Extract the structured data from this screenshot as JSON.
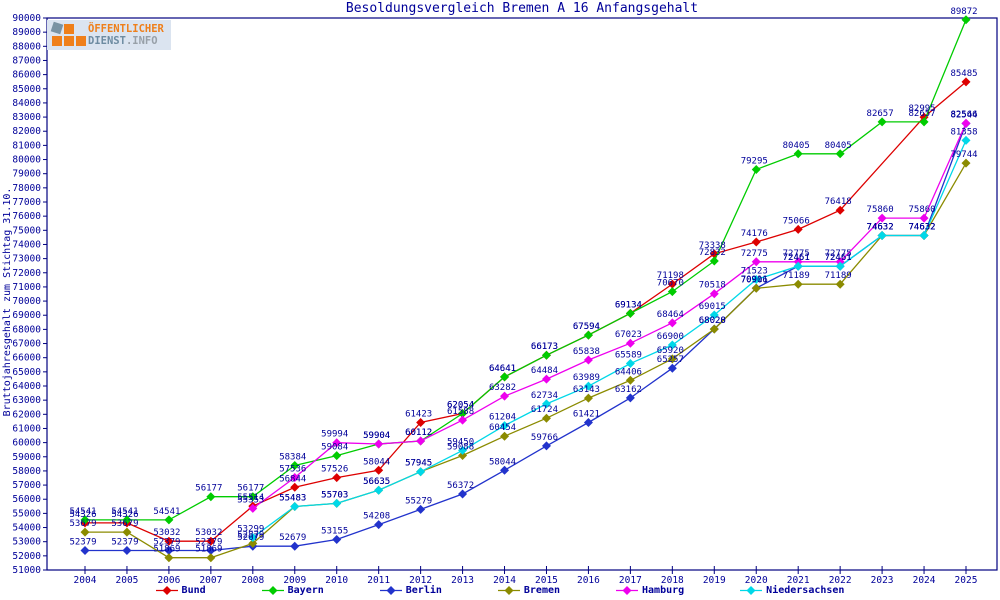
{
  "logo": {
    "line1": "ÖFFENTLICHER",
    "line2a": "DIENST",
    "line2b": ".INFO"
  },
  "colors": {
    "text": "#000099",
    "frame": "#000080",
    "background": "#ffffff",
    "logo_orange": "#ef7f1a",
    "logo_slate": "#7a93a3",
    "logo_gray": "#98a0a8"
  },
  "chart_data": {
    "type": "line",
    "title": "Besoldungsvergleich Bremen A 16 Anfangsgehalt",
    "xlabel": "",
    "ylabel": "Bruttojahresgehalt zum Stichtag 31.10.",
    "ylim": [
      51000,
      90000
    ],
    "y_tick_step": 1000,
    "grid": false,
    "legend_position": "bottom",
    "x": [
      2004,
      2005,
      2006,
      2007,
      2008,
      2009,
      2010,
      2011,
      2012,
      2013,
      2014,
      2015,
      2016,
      2017,
      2018,
      2019,
      2020,
      2021,
      2022,
      2023,
      2024,
      2025
    ],
    "series": [
      {
        "name": "Bund",
        "color": "#dd0000",
        "values": [
          54326,
          54326,
          53032,
          53032,
          55514,
          56844,
          57526,
          58044,
          61423,
          62054,
          64641,
          66173,
          67594,
          69134,
          71198,
          73338,
          74176,
          75066,
          76418,
          null,
          82995,
          85485
        ]
      },
      {
        "name": "Bayern",
        "color": "#00cc00",
        "values": [
          54541,
          54541,
          54541,
          56177,
          56177,
          58384,
          59084,
          59904,
          60112,
          62054,
          64641,
          66173,
          67594,
          69134,
          70670,
          72832,
          79295,
          80405,
          80405,
          82657,
          82657,
          89872
        ]
      },
      {
        "name": "Berlin",
        "color": "#2233cc",
        "values": [
          52379,
          52379,
          52379,
          52379,
          52679,
          52679,
          53155,
          54208,
          55279,
          56372,
          58044,
          59766,
          61421,
          63162,
          65257,
          68028,
          70911,
          72461,
          72461,
          74632,
          74632,
          82544
        ]
      },
      {
        "name": "Bremen",
        "color": "#8b8b00",
        "values": [
          53679,
          53679,
          51869,
          51869,
          52879,
          55483,
          55703,
          56635,
          57945,
          59088,
          60454,
          61724,
          63143,
          64406,
          65920,
          68020,
          70906,
          71189,
          71189,
          74632,
          74632,
          79744
        ]
      },
      {
        "name": "Hamburg",
        "color": "#ee00ee",
        "values": [
          null,
          null,
          null,
          null,
          55353,
          57536,
          59994,
          59904,
          60112,
          61588,
          63282,
          64484,
          65838,
          67023,
          68464,
          70518,
          72775,
          72775,
          72775,
          75860,
          75860,
          82566
        ]
      },
      {
        "name": "Niedersachsen",
        "color": "#00d8e8",
        "values": [
          null,
          null,
          null,
          null,
          53299,
          55483,
          55703,
          56635,
          57945,
          59450,
          61204,
          62734,
          63989,
          65589,
          66900,
          69015,
          71523,
          72461,
          72461,
          74632,
          74632,
          81358
        ]
      }
    ]
  }
}
